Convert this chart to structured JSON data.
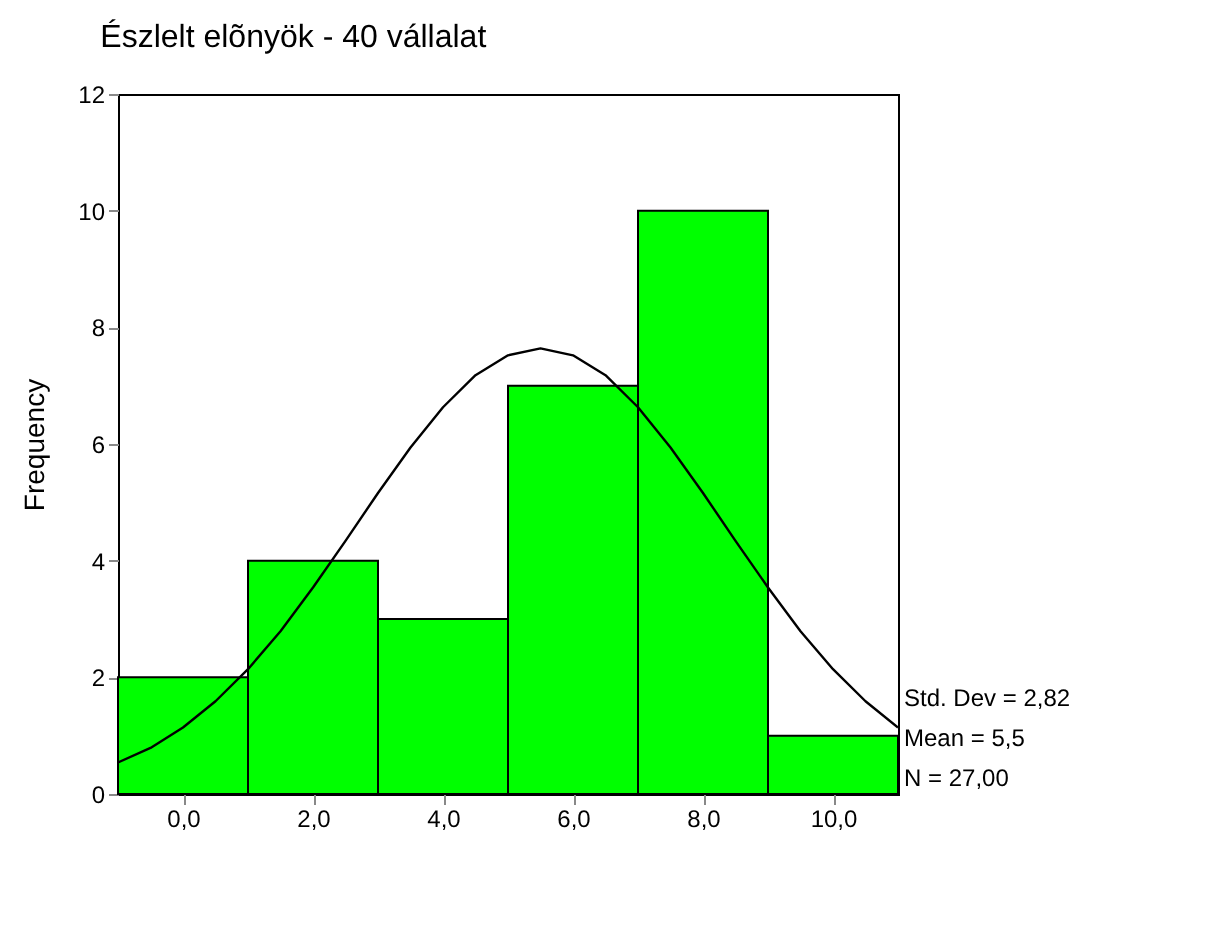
{
  "chart_data": {
    "type": "histogram",
    "title": "Észlelt elõnyök - 40 vállalat",
    "ylabel": "Frequency",
    "bins": [
      -1,
      1,
      3,
      5,
      7,
      9,
      11
    ],
    "values": [
      2,
      4,
      3,
      7,
      10,
      1
    ],
    "color": "#00ff00",
    "series": [
      {
        "type": "line",
        "color": "#000000",
        "x": [
          -1,
          -0.5,
          0,
          0.5,
          1,
          1.5,
          2,
          2.5,
          3,
          3.5,
          4,
          4.5,
          5,
          5.5,
          6,
          6.5,
          7,
          7.5,
          8,
          8.5,
          9,
          9.5,
          10,
          10.5,
          11
        ],
        "values": [
          0.54,
          0.79,
          1.14,
          1.59,
          2.14,
          2.79,
          3.54,
          4.34,
          5.16,
          5.94,
          6.63,
          7.18,
          7.52,
          7.64,
          7.52,
          7.18,
          6.63,
          5.94,
          5.16,
          4.34,
          3.54,
          2.79,
          2.14,
          1.59,
          1.14
        ]
      }
    ],
    "xlim": [
      -1,
      11
    ],
    "xticks": [
      {
        "value": 0,
        "label": "0,0"
      },
      {
        "value": 2,
        "label": "2,0"
      },
      {
        "value": 4,
        "label": "4,0"
      },
      {
        "value": 6,
        "label": "6,0"
      },
      {
        "value": 8,
        "label": "8,0"
      },
      {
        "value": 10,
        "label": "10,0"
      }
    ],
    "ylim": [
      0,
      12
    ],
    "yticks": [
      0,
      2,
      4,
      6,
      8,
      10,
      12
    ],
    "annotations": [
      "Std. Dev = 2,82",
      "Mean = 5,5",
      "N = 27,00"
    ]
  }
}
